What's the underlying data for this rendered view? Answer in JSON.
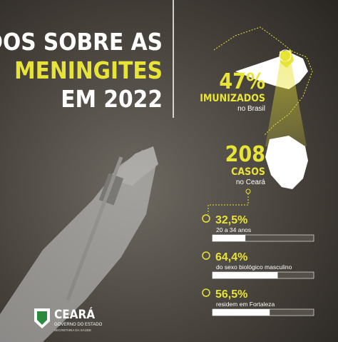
{
  "title": [
    "DADOS SOBRE AS",
    "MENINGITES",
    "EM 2022"
  ],
  "brazil": {
    "number": "47%",
    "label": "IMUNIZADOS",
    "place": "no Brasil"
  },
  "ceara": {
    "number": "208",
    "label": "CASOS",
    "place": "no Ceará"
  },
  "stats": [
    {
      "value": 32.5,
      "label": "32,5%",
      "caption": "20 a 34 anos"
    },
    {
      "value": 64.4,
      "label": "64,4%",
      "caption": "do sexo biológico masculino"
    },
    {
      "value": 56.5,
      "label": "56,5%",
      "caption": "residem em Fortaleza"
    }
  ],
  "logo": {
    "name": "CEARÁ",
    "line1": "GOVERNO DO ESTADO",
    "line2": "SECRETARIA DA SAÚDE"
  }
}
